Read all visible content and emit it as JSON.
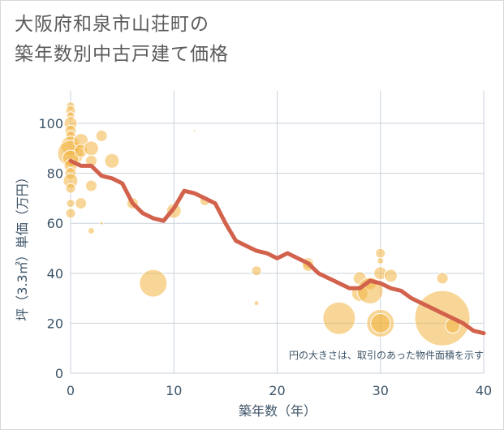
{
  "chart_data": {
    "type": "scatter+line",
    "title": [
      "大阪府和泉市山荘町の",
      "築年数別中古戸建て価格"
    ],
    "xlabel": "築年数（年）",
    "ylabel": "坪（3.3㎡）単価（万円）",
    "xlim": [
      0,
      40
    ],
    "ylim": [
      0,
      113
    ],
    "xticks": [
      0,
      10,
      20,
      30,
      40
    ],
    "yticks": [
      0,
      20,
      40,
      60,
      80,
      100
    ],
    "note": "円の大きさは、取引のあった物件面積を示す",
    "colors": {
      "bubble": "#f2b441",
      "line": "#d2624c",
      "grid": "#c9d2dc"
    },
    "bubbles": [
      {
        "x": 0,
        "y": 107,
        "s": 5
      },
      {
        "x": 0,
        "y": 105,
        "s": 6
      },
      {
        "x": 0,
        "y": 103,
        "s": 5
      },
      {
        "x": 0,
        "y": 100,
        "s": 8
      },
      {
        "x": 0,
        "y": 97,
        "s": 7
      },
      {
        "x": 0,
        "y": 95,
        "s": 6
      },
      {
        "x": 0,
        "y": 91,
        "s": 12
      },
      {
        "x": 0,
        "y": 88,
        "s": 16
      },
      {
        "x": 0,
        "y": 86,
        "s": 10
      },
      {
        "x": 0,
        "y": 83,
        "s": 8
      },
      {
        "x": 0,
        "y": 80,
        "s": 7
      },
      {
        "x": 0,
        "y": 77,
        "s": 9
      },
      {
        "x": 0,
        "y": 74,
        "s": 6
      },
      {
        "x": 0,
        "y": 68,
        "s": 5
      },
      {
        "x": 0,
        "y": 64,
        "s": 6
      },
      {
        "x": 1,
        "y": 93,
        "s": 9
      },
      {
        "x": 1,
        "y": 89,
        "s": 8
      },
      {
        "x": 1,
        "y": 68,
        "s": 7
      },
      {
        "x": 2,
        "y": 90,
        "s": 9
      },
      {
        "x": 2,
        "y": 85,
        "s": 7
      },
      {
        "x": 2,
        "y": 75,
        "s": 7
      },
      {
        "x": 2,
        "y": 57,
        "s": 4
      },
      {
        "x": 3,
        "y": 95,
        "s": 7
      },
      {
        "x": 3,
        "y": 60,
        "s": 2
      },
      {
        "x": 4,
        "y": 85,
        "s": 9
      },
      {
        "x": 6,
        "y": 68,
        "s": 7
      },
      {
        "x": 8,
        "y": 36,
        "s": 17
      },
      {
        "x": 10,
        "y": 65,
        "s": 9
      },
      {
        "x": 12,
        "y": 97,
        "s": 1.5
      },
      {
        "x": 13,
        "y": 69,
        "s": 6
      },
      {
        "x": 18,
        "y": 41,
        "s": 6
      },
      {
        "x": 18,
        "y": 28,
        "s": 3
      },
      {
        "x": 23,
        "y": 44,
        "s": 7
      },
      {
        "x": 23,
        "y": 43,
        "s": 7
      },
      {
        "x": 26,
        "y": 22,
        "s": 20
      },
      {
        "x": 28,
        "y": 38,
        "s": 8
      },
      {
        "x": 28,
        "y": 32,
        "s": 10
      },
      {
        "x": 29,
        "y": 36,
        "s": 8
      },
      {
        "x": 29,
        "y": 33,
        "s": 16
      },
      {
        "x": 30,
        "y": 48,
        "s": 6
      },
      {
        "x": 30,
        "y": 45,
        "s": 4
      },
      {
        "x": 30,
        "y": 40,
        "s": 8
      },
      {
        "x": 30,
        "y": 20,
        "s": 17
      },
      {
        "x": 30,
        "y": 20,
        "s": 12
      },
      {
        "x": 31,
        "y": 39,
        "s": 8
      },
      {
        "x": 36,
        "y": 38,
        "s": 7
      },
      {
        "x": 36,
        "y": 22,
        "s": 34
      },
      {
        "x": 37,
        "y": 19,
        "s": 9
      }
    ],
    "line": {
      "x": [
        0,
        1,
        2,
        3,
        4,
        5,
        6,
        7,
        8,
        9,
        10,
        11,
        12,
        13,
        14,
        15,
        16,
        17,
        18,
        19,
        20,
        21,
        22,
        23,
        24,
        25,
        26,
        27,
        28,
        29,
        30,
        31,
        32,
        33,
        34,
        35,
        36,
        37,
        38,
        39,
        40
      ],
      "y": [
        85,
        83,
        83,
        79,
        78,
        76,
        68,
        64,
        62,
        61,
        66,
        73,
        72,
        70,
        68,
        60,
        53,
        51,
        49,
        48,
        46,
        48,
        46,
        44,
        40,
        38,
        36,
        34,
        34,
        37,
        36,
        34,
        33,
        30,
        28,
        26,
        24,
        22,
        20,
        17,
        16
      ]
    }
  }
}
